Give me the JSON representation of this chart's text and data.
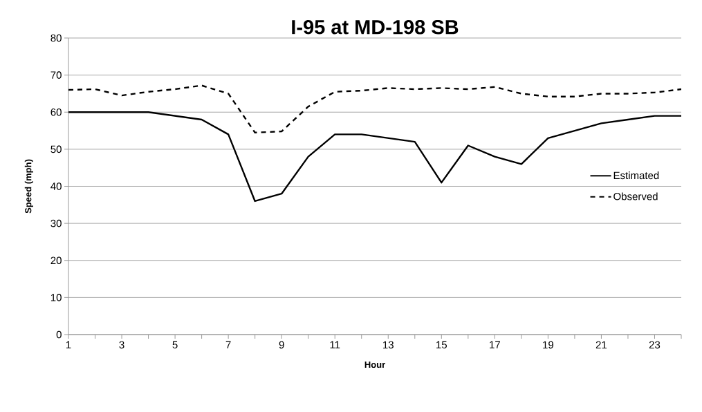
{
  "chart_data": {
    "type": "line",
    "title": "I-95 at MD-198 SB",
    "xlabel": "Hour",
    "ylabel": "Speed (mph)",
    "x": [
      1,
      2,
      3,
      4,
      5,
      6,
      7,
      8,
      9,
      10,
      11,
      12,
      13,
      14,
      15,
      16,
      17,
      18,
      19,
      20,
      21,
      22,
      23,
      24
    ],
    "series": [
      {
        "name": "Estimated",
        "color": "#000000",
        "line_style": "solid",
        "values": [
          60,
          60,
          60,
          60,
          59,
          58,
          54,
          36,
          38,
          48,
          54,
          54,
          53,
          52,
          41,
          51,
          48,
          46,
          53,
          55,
          57,
          58,
          59,
          59
        ]
      },
      {
        "name": "Observed",
        "color": "#000000",
        "line_style": "dashed",
        "values": [
          66,
          66.2,
          64.5,
          65.5,
          66.2,
          67.2,
          65,
          54.5,
          54.8,
          61.5,
          65.5,
          65.8,
          66.5,
          66.2,
          66.5,
          66.2,
          66.8,
          65,
          64.2,
          64.2,
          65,
          65,
          65.3,
          66.2
        ]
      }
    ],
    "xlim": [
      1,
      24
    ],
    "xticks": [
      1,
      {
        "value": 2,
        "label": null
      },
      3,
      {
        "value": 4,
        "label": null
      },
      5,
      {
        "value": 6,
        "label": null
      },
      7,
      {
        "value": 8,
        "label": null
      },
      9,
      {
        "value": 10,
        "label": null
      },
      11,
      {
        "value": 12,
        "label": null
      },
      13,
      {
        "value": 14,
        "label": null
      },
      15,
      {
        "value": 16,
        "label": null
      },
      17,
      {
        "value": 18,
        "label": null
      },
      19,
      {
        "value": 20,
        "label": null
      },
      21,
      {
        "value": 22,
        "label": null
      },
      23,
      {
        "value": 24,
        "label": null
      }
    ],
    "ylim": [
      0,
      80
    ],
    "yticks": [
      0,
      10,
      20,
      30,
      40,
      50,
      60,
      70,
      80
    ],
    "grid": "y",
    "legend": "right",
    "marker": "none"
  }
}
